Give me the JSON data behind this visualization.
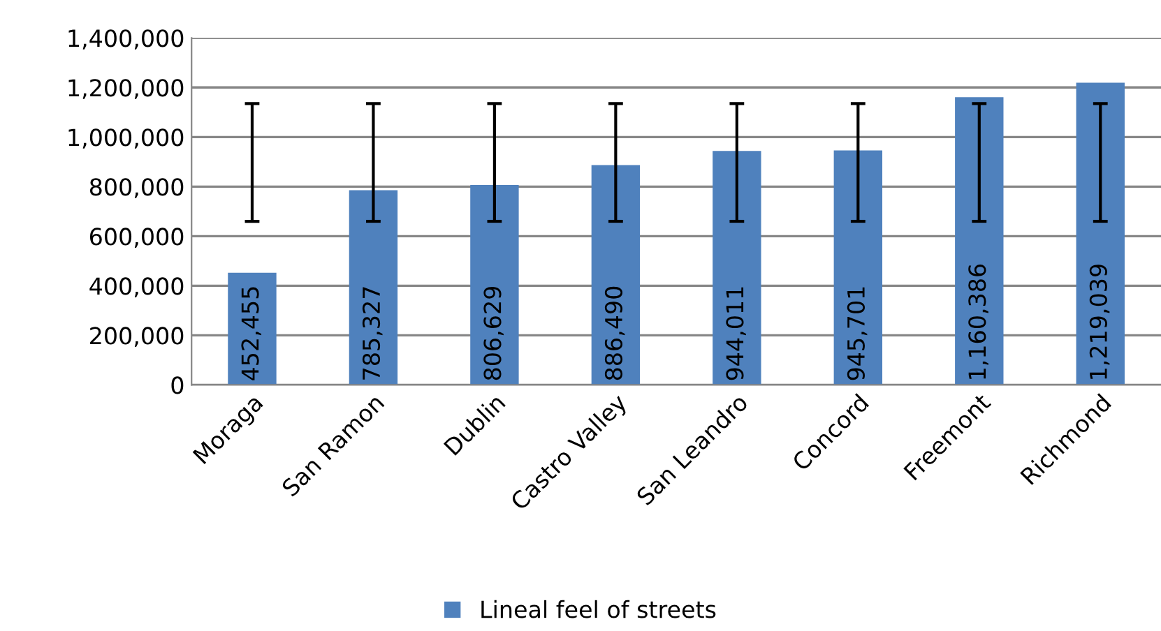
{
  "chart_data": {
    "type": "bar",
    "categories": [
      "Moraga",
      "San Ramon",
      "Dublin",
      "Castro Valley",
      "San Leandro",
      "Concord",
      "Freemont",
      "Richmond"
    ],
    "series": [
      {
        "name": "Lineal feel of streets",
        "color": "#4f81bd",
        "values": [
          452455,
          785327,
          806629,
          886490,
          944011,
          945701,
          1160386,
          1219039
        ],
        "value_labels": [
          "452,455",
          "785,327",
          "806,629",
          "886,490",
          "944,011",
          "945,701",
          "1,160,386",
          "1,219,039"
        ],
        "errors": [
          [
            660000,
            1135000
          ],
          [
            660000,
            1135000
          ],
          [
            660000,
            1135000
          ],
          [
            660000,
            1135000
          ],
          [
            660000,
            1135000
          ],
          [
            660000,
            1135000
          ],
          [
            660000,
            1135000
          ],
          [
            660000,
            1135000
          ]
        ]
      }
    ],
    "ylim": [
      0,
      1400000
    ],
    "yticks": [
      {
        "value": 0,
        "label": "0"
      },
      {
        "value": 200000,
        "label": "200,000"
      },
      {
        "value": 400000,
        "label": "400,000"
      },
      {
        "value": 600000,
        "label": "600,000"
      },
      {
        "value": 800000,
        "label": "800,000"
      },
      {
        "value": 1000000,
        "label": "1,000,000"
      },
      {
        "value": 1200000,
        "label": "1,200,000"
      },
      {
        "value": 1400000,
        "label": "1,400,000"
      }
    ],
    "grid": "y",
    "legend": "bottom"
  }
}
